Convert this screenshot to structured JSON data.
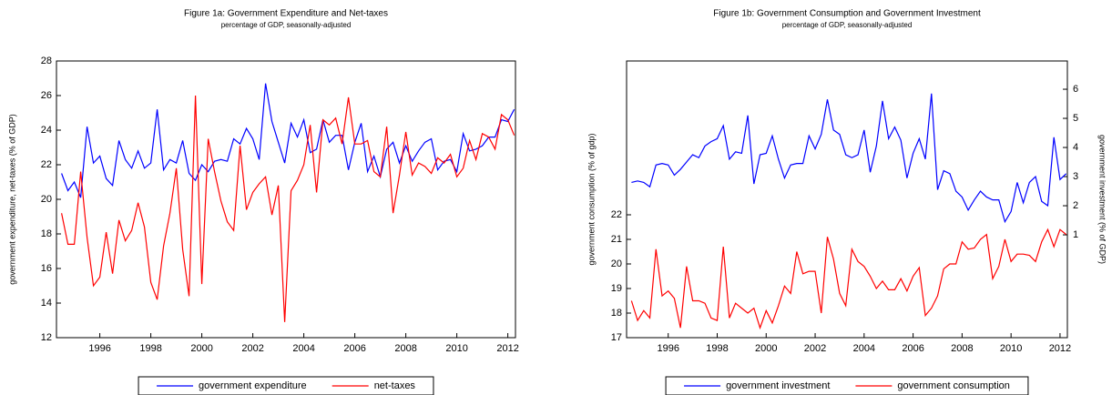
{
  "chart_data": [
    {
      "type": "line",
      "title": "Figure 1a: Government Expenditure and Net-taxes",
      "subtitle": "percentage of GDP, seasonally-adjusted",
      "y_label": "government expenditure, net-taxes (% of GDP)",
      "x": [
        1994.5,
        1994.75,
        1995,
        1995.25,
        1995.5,
        1995.75,
        1996,
        1996.25,
        1996.5,
        1996.75,
        1997,
        1997.25,
        1997.5,
        1997.75,
        1998,
        1998.25,
        1998.5,
        1998.75,
        1999,
        1999.25,
        1999.5,
        1999.75,
        2000,
        2000.25,
        2000.5,
        2000.75,
        2001,
        2001.25,
        2001.5,
        2001.75,
        2002,
        2002.25,
        2002.5,
        2002.75,
        2003,
        2003.25,
        2003.5,
        2003.75,
        2004,
        2004.25,
        2004.5,
        2004.75,
        2005,
        2005.25,
        2005.5,
        2005.75,
        2006,
        2006.25,
        2006.5,
        2006.75,
        2007,
        2007.25,
        2007.5,
        2007.75,
        2008,
        2008.25,
        2008.5,
        2008.75,
        2009,
        2009.25,
        2009.5,
        2009.75,
        2010,
        2010.25,
        2010.5,
        2010.75,
        2011,
        2011.25,
        2011.5,
        2011.75,
        2012,
        2012.25
      ],
      "xlim": [
        1994.3,
        2012.3
      ],
      "xticks": [
        1996,
        1998,
        2000,
        2002,
        2004,
        2006,
        2008,
        2010,
        2012
      ],
      "ylim": [
        12,
        28
      ],
      "yticks": [
        12,
        14,
        16,
        18,
        20,
        22,
        24,
        26,
        28
      ],
      "grid": false,
      "legend": "bottom",
      "series": [
        {
          "name": "government expenditure",
          "color": "#0000ff",
          "values": [
            21.5,
            20.5,
            21.0,
            20.1,
            24.2,
            22.1,
            22.5,
            21.2,
            20.8,
            23.4,
            22.3,
            21.8,
            22.8,
            21.8,
            22.1,
            25.2,
            21.7,
            22.3,
            22.1,
            23.4,
            21.5,
            21.1,
            22.0,
            21.6,
            22.2,
            22.3,
            22.2,
            23.5,
            23.2,
            24.1,
            23.5,
            22.3,
            26.7,
            24.5,
            23.3,
            22.1,
            24.4,
            23.6,
            24.6,
            22.7,
            22.9,
            24.6,
            23.3,
            23.7,
            23.7,
            21.7,
            23.3,
            24.4,
            21.6,
            22.5,
            21.3,
            22.9,
            23.3,
            22.1,
            23.1,
            22.2,
            22.8,
            23.3,
            23.5,
            21.7,
            22.2,
            22.3,
            21.6,
            23.8,
            22.8,
            22.9,
            23.1,
            23.6,
            23.6,
            24.6,
            24.5,
            25.2
          ]
        },
        {
          "name": "net-taxes",
          "color": "#ff0000",
          "values": [
            19.2,
            17.4,
            17.4,
            21.6,
            17.8,
            15.0,
            15.5,
            18.1,
            15.7,
            18.8,
            17.6,
            18.2,
            19.8,
            18.4,
            15.2,
            14.2,
            17.3,
            19.2,
            21.8,
            17.1,
            14.4,
            26.0,
            15.1,
            23.5,
            21.6,
            19.9,
            18.7,
            18.2,
            23.1,
            19.4,
            20.4,
            20.9,
            21.3,
            19.1,
            20.8,
            12.9,
            20.5,
            21.1,
            22.0,
            24.3,
            20.4,
            24.6,
            24.3,
            24.7,
            23.2,
            25.9,
            23.2,
            23.2,
            23.4,
            21.6,
            21.3,
            24.2,
            19.2,
            21.4,
            23.9,
            21.4,
            22.1,
            21.9,
            21.5,
            22.4,
            22.1,
            22.6,
            21.3,
            21.8,
            23.4,
            22.3,
            23.8,
            23.6,
            22.9,
            24.9,
            24.6,
            23.7
          ]
        }
      ]
    },
    {
      "type": "line",
      "title": "Figure 1b: Government Consumption and Government Investment",
      "subtitle": "percentage of GDP, seasonally-adjusted",
      "y_label": "government consumption (% of gdp)",
      "y2_label": "government investment (% of GDP)",
      "x": [
        1994.5,
        1994.75,
        1995,
        1995.25,
        1995.5,
        1995.75,
        1996,
        1996.25,
        1996.5,
        1996.75,
        1997,
        1997.25,
        1997.5,
        1997.75,
        1998,
        1998.25,
        1998.5,
        1998.75,
        1999,
        1999.25,
        1999.5,
        1999.75,
        2000,
        2000.25,
        2000.5,
        2000.75,
        2001,
        2001.25,
        2001.5,
        2001.75,
        2002,
        2002.25,
        2002.5,
        2002.75,
        2003,
        2003.25,
        2003.5,
        2003.75,
        2004,
        2004.25,
        2004.5,
        2004.75,
        2005,
        2005.25,
        2005.5,
        2005.75,
        2006,
        2006.25,
        2006.5,
        2006.75,
        2007,
        2007.25,
        2007.5,
        2007.75,
        2008,
        2008.25,
        2008.5,
        2008.75,
        2009,
        2009.25,
        2009.5,
        2009.75,
        2010,
        2010.25,
        2010.5,
        2010.75,
        2011,
        2011.25,
        2011.5,
        2011.75,
        2012,
        2012.25
      ],
      "xlim": [
        1994.3,
        2012.3
      ],
      "xticks": [
        1996,
        1998,
        2000,
        2002,
        2004,
        2006,
        2008,
        2010,
        2012
      ],
      "ylim": [
        17,
        28.26
      ],
      "yticks": [
        17,
        18,
        19,
        20,
        21,
        22
      ],
      "y2lim": [
        -2.53,
        6.97
      ],
      "y2ticks": [
        1,
        2,
        3,
        4,
        5,
        6
      ],
      "grid": false,
      "legend": "bottom",
      "series": [
        {
          "name": "government investment",
          "color": "#0000ff",
          "axis": "y2",
          "values": [
            2.8,
            2.85,
            2.8,
            2.65,
            3.4,
            3.45,
            3.4,
            3.05,
            3.25,
            3.5,
            3.75,
            3.65,
            4.05,
            4.2,
            4.3,
            4.75,
            3.6,
            3.85,
            3.8,
            5.1,
            2.75,
            3.75,
            3.8,
            4.4,
            3.6,
            2.95,
            3.4,
            3.45,
            3.45,
            4.4,
            3.95,
            4.45,
            5.65,
            4.6,
            4.45,
            3.75,
            3.65,
            3.75,
            4.6,
            3.15,
            4.05,
            5.6,
            4.3,
            4.7,
            4.25,
            2.95,
            3.8,
            4.3,
            3.6,
            5.85,
            2.55,
            3.2,
            3.1,
            2.5,
            2.3,
            1.85,
            2.2,
            2.5,
            2.3,
            2.2,
            2.2,
            1.45,
            1.8,
            2.8,
            2.1,
            2.8,
            3.0,
            2.15,
            2.0,
            4.35,
            2.9,
            3.1
          ]
        },
        {
          "name": "government consumption",
          "color": "#ff0000",
          "values": [
            18.5,
            17.7,
            18.1,
            17.8,
            20.6,
            18.7,
            18.9,
            18.6,
            17.4,
            19.9,
            18.5,
            18.5,
            18.4,
            17.8,
            17.7,
            20.7,
            17.8,
            18.4,
            18.2,
            18.0,
            18.2,
            17.4,
            18.1,
            17.6,
            18.3,
            19.1,
            18.8,
            20.5,
            19.6,
            19.7,
            19.7,
            18.0,
            21.1,
            20.2,
            18.8,
            18.3,
            20.6,
            20.1,
            19.9,
            19.5,
            19.0,
            19.3,
            18.95,
            18.95,
            19.4,
            18.9,
            19.5,
            19.85,
            17.9,
            18.2,
            18.7,
            19.8,
            20.0,
            20.0,
            20.9,
            20.6,
            20.65,
            21.0,
            21.2,
            19.4,
            19.9,
            21.0,
            20.1,
            20.4,
            20.4,
            20.35,
            20.1,
            20.9,
            21.4,
            20.7,
            21.4,
            21.2
          ]
        }
      ]
    }
  ]
}
